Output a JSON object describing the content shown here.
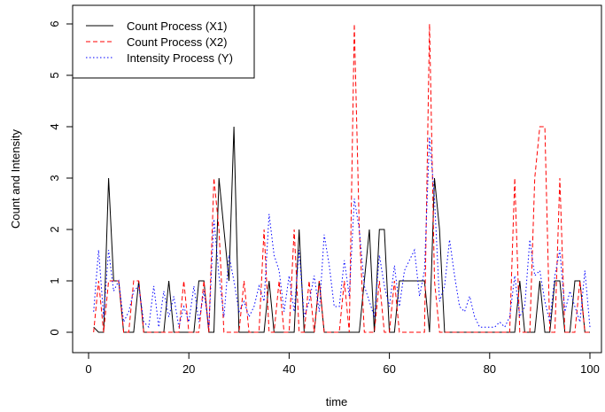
{
  "chart_data": {
    "type": "line",
    "title": "",
    "xlabel": "time",
    "ylabel": "Count and Intensity",
    "xlim": [
      0,
      100
    ],
    "ylim": [
      0,
      6
    ],
    "xticks": [
      0,
      20,
      40,
      60,
      80,
      100
    ],
    "yticks": [
      0,
      1,
      2,
      3,
      4,
      5,
      6
    ],
    "x": [
      1,
      2,
      3,
      4,
      5,
      6,
      7,
      8,
      9,
      10,
      11,
      12,
      13,
      14,
      15,
      16,
      17,
      18,
      19,
      20,
      21,
      22,
      23,
      24,
      25,
      26,
      27,
      28,
      29,
      30,
      31,
      32,
      33,
      34,
      35,
      36,
      37,
      38,
      39,
      40,
      41,
      42,
      43,
      44,
      45,
      46,
      47,
      48,
      49,
      50,
      51,
      52,
      53,
      54,
      55,
      56,
      57,
      58,
      59,
      60,
      61,
      62,
      63,
      64,
      65,
      66,
      67,
      68,
      69,
      70,
      71,
      72,
      73,
      74,
      75,
      76,
      77,
      78,
      79,
      80,
      81,
      82,
      83,
      84,
      85,
      86,
      87,
      88,
      89,
      90,
      91,
      92,
      93,
      94,
      95,
      96,
      97,
      98,
      99,
      100
    ],
    "legend_position": "top-left",
    "grid": false,
    "series": [
      {
        "name": "Count Process (X1)",
        "color": "#000000",
        "style": "solid",
        "values": [
          0.1,
          0,
          0,
          3,
          1,
          1,
          0,
          0,
          0,
          1,
          0,
          0,
          0,
          0,
          0,
          1,
          0,
          0,
          0,
          0,
          0,
          1,
          1,
          0,
          0,
          3,
          2,
          1,
          4,
          0,
          0,
          0,
          0,
          0,
          0,
          1,
          0,
          0,
          0,
          0,
          0,
          2,
          0,
          0,
          0,
          1,
          0,
          0,
          0,
          0,
          0,
          0,
          0,
          0,
          1,
          2,
          0,
          2,
          2,
          0,
          0,
          1,
          1,
          1,
          1,
          1,
          1,
          0,
          3,
          2,
          0,
          0,
          0,
          0,
          0,
          0,
          0,
          0,
          0,
          0,
          0,
          0,
          0,
          0,
          0,
          1,
          0,
          0,
          0,
          1,
          0,
          0,
          1,
          1,
          0,
          0,
          1,
          1,
          0,
          0
        ]
      },
      {
        "name": "Count Process (X2)",
        "color": "#ff0000",
        "style": "dashed",
        "values": [
          0,
          1,
          0,
          1,
          1,
          1,
          0,
          0,
          1,
          1,
          0,
          0,
          0,
          0,
          0,
          0,
          0,
          0,
          1,
          0,
          0,
          0,
          1,
          0,
          3,
          2,
          0,
          0,
          0,
          0,
          1,
          0,
          0,
          0,
          2,
          0,
          0,
          1,
          0,
          0,
          2,
          0,
          0,
          1,
          0,
          1,
          0,
          0,
          0,
          0,
          1,
          0,
          6,
          2,
          0,
          0,
          0,
          1,
          0,
          0,
          1,
          0,
          0,
          0,
          0,
          0,
          0,
          6,
          1,
          0,
          0,
          0,
          0,
          0,
          0,
          0,
          0,
          0,
          0,
          0,
          0,
          0,
          0,
          0,
          3,
          0,
          0,
          0,
          3,
          4,
          4,
          0,
          0,
          3,
          0,
          0,
          0,
          1,
          0,
          0
        ]
      },
      {
        "name": "Intensity Process (Y)",
        "color": "#0000ff",
        "style": "dotted",
        "values": [
          0.4,
          1.6,
          0.3,
          1.6,
          0.8,
          1,
          0.2,
          0.4,
          0.8,
          0.9,
          0.2,
          0.1,
          0.9,
          0.1,
          0.8,
          0.3,
          0.7,
          0.1,
          0.5,
          0.2,
          0.9,
          0.2,
          0.8,
          0.1,
          2.2,
          1.1,
          0.3,
          1.5,
          1,
          0.4,
          0.6,
          0.3,
          0.5,
          0.9,
          0.6,
          2.3,
          1.5,
          1.2,
          0.4,
          1.1,
          0.4,
          1.6,
          0.3,
          0.6,
          1.1,
          0.4,
          1.9,
          1.3,
          0.5,
          0.5,
          1.4,
          0.7,
          2.6,
          2,
          0.9,
          0.6,
          0.3,
          1.5,
          0.9,
          0.5,
          1.3,
          0.5,
          1.2,
          1.4,
          1.6,
          0.7,
          1.2,
          3.8,
          2.6,
          0.6,
          0.9,
          1.8,
          1.1,
          0.5,
          0.4,
          0.7,
          0.3,
          0.1,
          0.1,
          0.1,
          0.1,
          0.2,
          0.1,
          0.3,
          1.1,
          0.3,
          0.5,
          1.8,
          1.1,
          1.2,
          0.6,
          0.2,
          1.1,
          1.6,
          0.4,
          0.8,
          0.5,
          0.2,
          1.2,
          0.1
        ]
      }
    ]
  }
}
